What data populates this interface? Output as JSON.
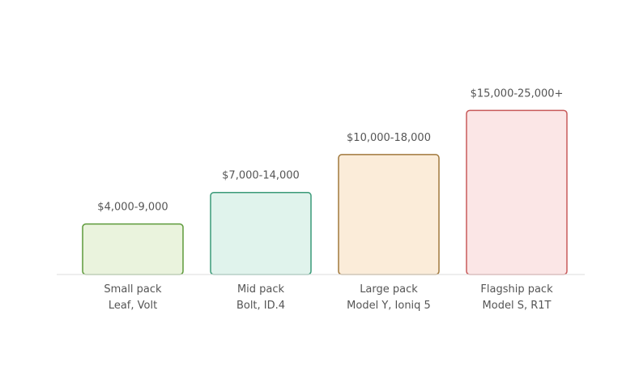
{
  "chart_data": {
    "type": "bar",
    "categories": [
      "Small pack",
      "Mid pack",
      "Large pack",
      "Flagship pack"
    ],
    "category_sublabels": [
      "Leaf, Volt",
      "Bolt, ID.4",
      "Model Y, Ioniq 5",
      "Model S, R1T"
    ],
    "value_labels": [
      "$4,000-9,000",
      "$7,000-14,000",
      "$10,000-18,000",
      "$15,000-25,000+"
    ],
    "values": [
      4000,
      6500,
      9500,
      13000
    ],
    "ylim": [
      0,
      14500
    ],
    "title": "",
    "xlabel": "",
    "ylabel": "",
    "grid": false,
    "legend": "none",
    "colors": {
      "fills": [
        "#eaf3dd",
        "#e0f3ec",
        "#fbecd9",
        "#fbe6e6"
      ],
      "strokes": [
        "#5d9a3a",
        "#3a9a78",
        "#a0783c",
        "#c85a5a"
      ],
      "baseline": "#e3e3e3",
      "text": "#555555"
    }
  }
}
